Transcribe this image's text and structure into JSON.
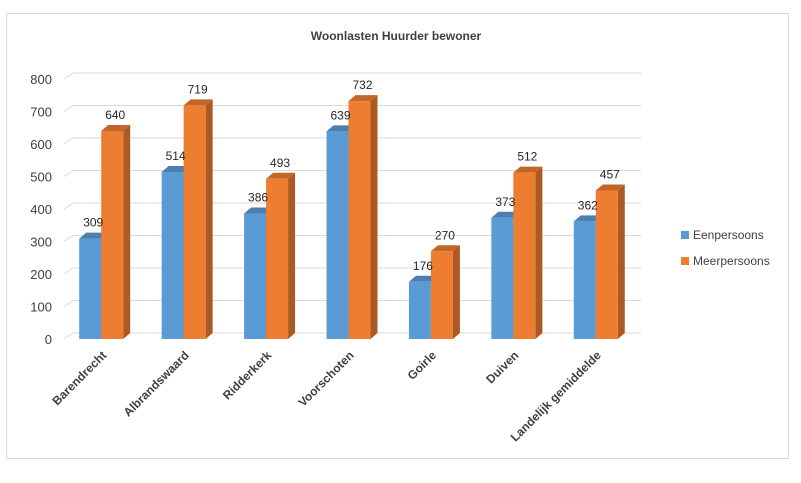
{
  "chart_data": {
    "type": "bar",
    "title": "Woonlasten Huurder bewoner",
    "categories": [
      "Barendrecht",
      "Albrandswaard",
      "Ridderkerk",
      "Voorschoten",
      "Goirle",
      "Duiven",
      "Landelijk gemiddelde"
    ],
    "series": [
      {
        "name": "Eenpersoons",
        "values": [
          309,
          514,
          386,
          639,
          176,
          373,
          362
        ],
        "color": "#5b9bd5"
      },
      {
        "name": "Meerpersoons",
        "values": [
          640,
          719,
          493,
          732,
          270,
          512,
          457
        ],
        "color": "#ed7d31"
      }
    ],
    "ylim": [
      0,
      800
    ],
    "yticks": [
      0,
      100,
      200,
      300,
      400,
      500,
      600,
      700,
      800
    ],
    "grid": true,
    "legend_position": "right",
    "style": "3d-column"
  }
}
